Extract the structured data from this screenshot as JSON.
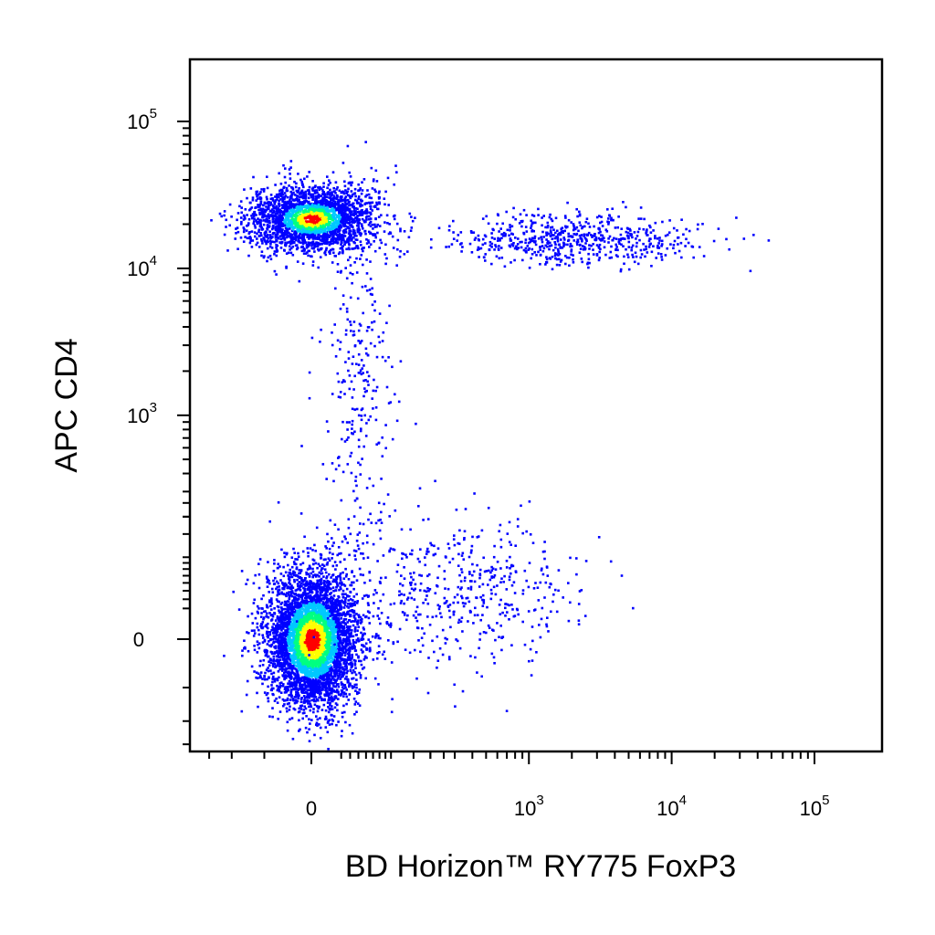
{
  "chart_data": {
    "type": "scatter",
    "plot_style": "density-colored flow cytometry dot plot",
    "xlabel": "BD Horizon™ RY775 FoxP3",
    "ylabel": "APC CD4",
    "x_scale": "biexponential (log with linear region near 0)",
    "y_scale": "biexponential (log with linear region near 0)",
    "xlim": [
      -150,
      250000
    ],
    "ylim": [
      -250,
      250000
    ],
    "x_ticks": [
      {
        "value": 0,
        "base": "0",
        "exp": ""
      },
      {
        "value": 1000,
        "base": "10",
        "exp": "3"
      },
      {
        "value": 10000,
        "base": "10",
        "exp": "4"
      },
      {
        "value": 100000,
        "base": "10",
        "exp": "5"
      }
    ],
    "y_ticks": [
      {
        "value": 0,
        "base": "0",
        "exp": ""
      },
      {
        "value": 1000,
        "base": "10",
        "exp": "3"
      },
      {
        "value": 10000,
        "base": "10",
        "exp": "4"
      },
      {
        "value": 100000,
        "base": "10",
        "exp": "5"
      }
    ],
    "density_colors": [
      "#0000ff",
      "#00c8ff",
      "#00ff80",
      "#ffff00",
      "#ff0000"
    ],
    "populations": [
      {
        "id": "cd4-neg-foxp3-neg",
        "x_center": 0,
        "y_center": 0,
        "relative_size": 0.55
      },
      {
        "id": "cd4-pos-foxp3-neg",
        "x_center": 0,
        "y_center": 22000,
        "relative_size": 0.28
      },
      {
        "id": "cd4-pos-foxp3-pos",
        "x_center": 2000,
        "y_center": 16000,
        "relative_size": 0.07
      },
      {
        "id": "cd4-low-transition",
        "x_center": 50,
        "y_center": 2500,
        "relative_size": 0.03
      },
      {
        "id": "cd4-neg-foxp3-low",
        "x_center": 300,
        "y_center": 50,
        "relative_size": 0.06
      }
    ],
    "grid": false,
    "legend": "none"
  }
}
